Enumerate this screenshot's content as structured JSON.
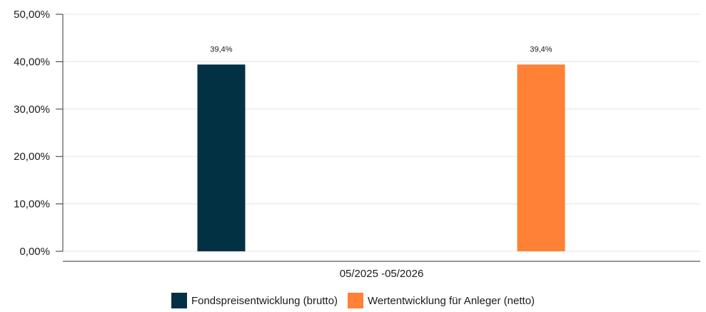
{
  "chart_data": {
    "type": "bar",
    "categories": [
      "05/2025 -05/2026"
    ],
    "series": [
      {
        "name": "Fondspreisentwicklung (brutto)",
        "values": [
          39.4
        ],
        "color": "#023143",
        "data_label": "39,4%"
      },
      {
        "name": "Wertentwicklung für Anleger (netto)",
        "values": [
          39.4
        ],
        "color": "#FF8135",
        "data_label": "39,4%"
      }
    ],
    "yticks": [
      "0,00%",
      "10,00%",
      "20,00%",
      "30,00%",
      "40,00%",
      "50,00%"
    ],
    "ylim": [
      0,
      50
    ],
    "grid": true,
    "legend_position": "bottom-center"
  }
}
